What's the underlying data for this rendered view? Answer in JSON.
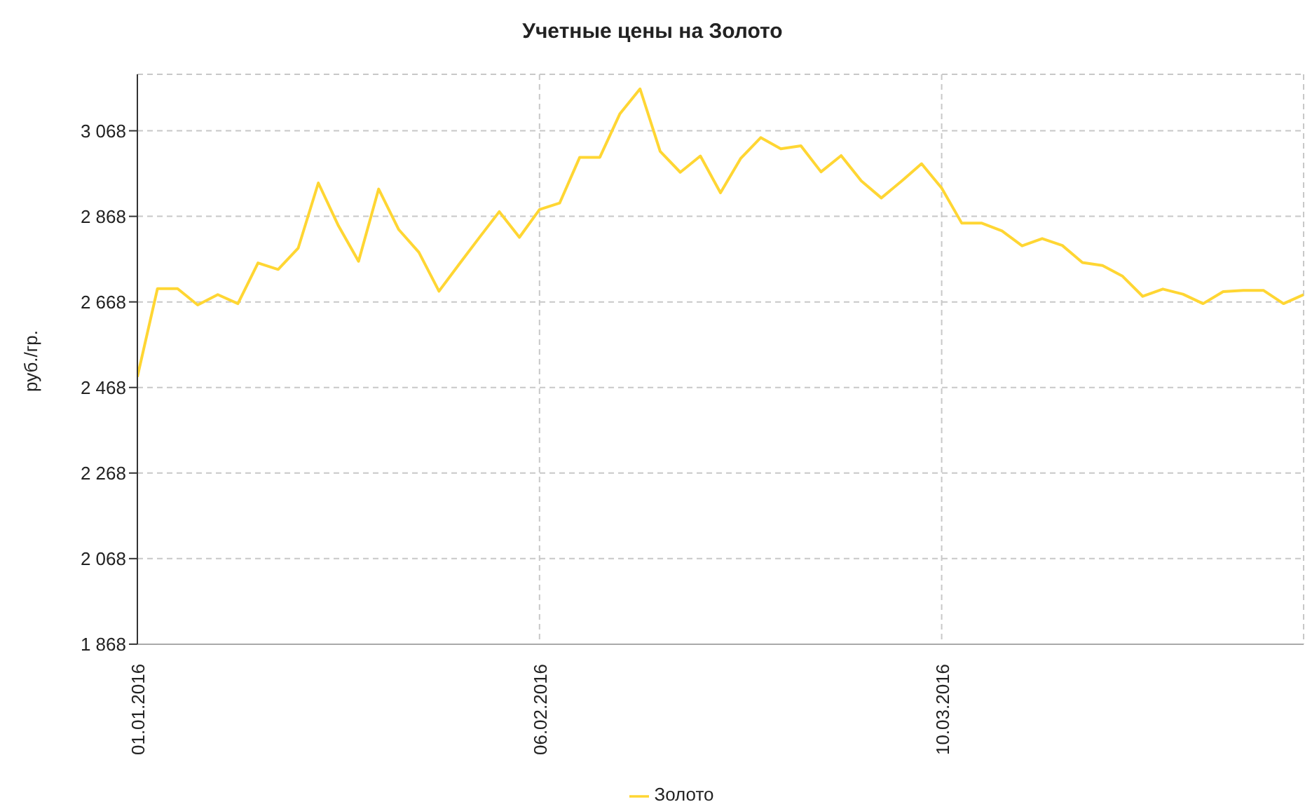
{
  "chart_data": {
    "type": "line",
    "title": "Учетные цены на Золото",
    "ylabel": "руб./гр.",
    "categories": [
      "01.01.2016",
      null,
      null,
      null,
      null,
      null,
      null,
      null,
      null,
      null,
      null,
      null,
      null,
      null,
      null,
      null,
      null,
      null,
      null,
      null,
      "06.02.2016",
      null,
      null,
      null,
      null,
      null,
      null,
      null,
      null,
      null,
      null,
      null,
      null,
      null,
      null,
      null,
      null,
      null,
      null,
      null,
      "10.03.2016",
      null,
      null,
      null,
      null,
      null,
      null,
      null,
      null,
      null,
      null,
      null,
      null,
      null,
      null,
      null,
      null,
      null,
      null
    ],
    "series": [
      {
        "name": "Золото",
        "color": "#ffd633",
        "values": [
          2493,
          2699,
          2699,
          2661,
          2685,
          2664,
          2759,
          2744,
          2794,
          2946,
          2846,
          2763,
          2932,
          2837,
          2784,
          2693,
          2756,
          2818,
          2879,
          2819,
          2884,
          2899,
          3006,
          3006,
          3108,
          3166,
          3020,
          2971,
          3009,
          2923,
          3003,
          3052,
          3026,
          3033,
          2972,
          3010,
          2951,
          2911,
          2950,
          2991,
          2934,
          2852,
          2852,
          2834,
          2799,
          2816,
          2800,
          2760,
          2753,
          2728,
          2681,
          2698,
          2686,
          2664,
          2692,
          2695,
          2695,
          2664,
          2685
        ]
      }
    ],
    "ylim": [
      1868,
      3200
    ],
    "yticks": [
      {
        "value": 1868,
        "label": "1 868"
      },
      {
        "value": 2068,
        "label": "2 068"
      },
      {
        "value": 2268,
        "label": "2 268"
      },
      {
        "value": 2468,
        "label": "2 468"
      },
      {
        "value": 2668,
        "label": "2 668"
      },
      {
        "value": 2868,
        "label": "2 868"
      },
      {
        "value": 3068,
        "label": "3 068"
      }
    ],
    "grid": true,
    "legend": "bottom",
    "marker": "none",
    "line_style": "solid"
  }
}
